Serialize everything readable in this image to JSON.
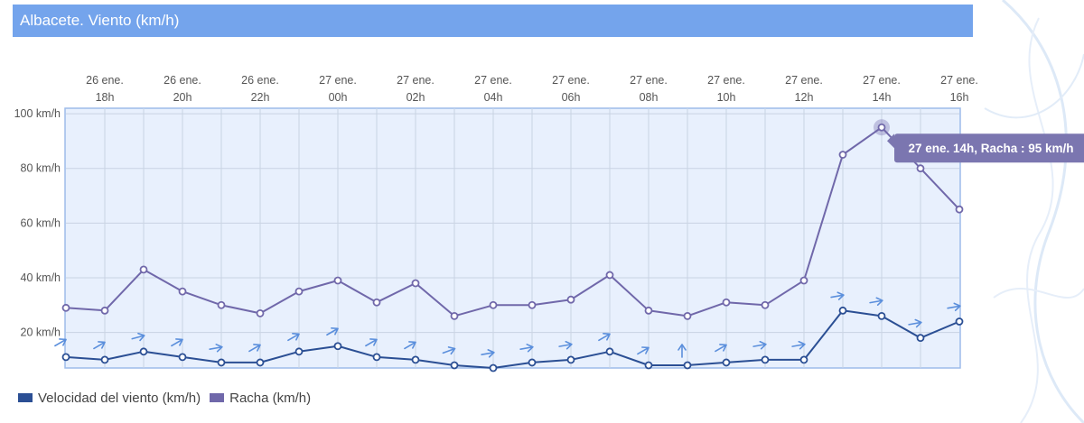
{
  "page": {
    "title": "Albacete. Viento (km/h)"
  },
  "colors": {
    "title_bg": "#74a4ec",
    "plot_bg": "#e8f0fd",
    "plot_border": "#9dbcea",
    "grid": "#c9d3e3",
    "wind": "#2b4f94",
    "gust": "#7068aa",
    "arrow": "#5b8fdc",
    "tooltip_bg": "#7b76b0"
  },
  "chart_data": {
    "type": "line",
    "title": "Albacete. Viento (km/h)",
    "x_labels": [
      {
        "day": "26 ene.",
        "hour": "18h"
      },
      {
        "day": "26 ene.",
        "hour": "20h"
      },
      {
        "day": "26 ene.",
        "hour": "22h"
      },
      {
        "day": "27 ene.",
        "hour": "00h"
      },
      {
        "day": "27 ene.",
        "hour": "02h"
      },
      {
        "day": "27 ene.",
        "hour": "04h"
      },
      {
        "day": "27 ene.",
        "hour": "06h"
      },
      {
        "day": "27 ene.",
        "hour": "08h"
      },
      {
        "day": "27 ene.",
        "hour": "10h"
      },
      {
        "day": "27 ene.",
        "hour": "12h"
      },
      {
        "day": "27 ene.",
        "hour": "14h"
      },
      {
        "day": "27 ene.",
        "hour": "16h"
      }
    ],
    "x": [
      "26 ene. 17h",
      "26 ene. 18h",
      "26 ene. 19h",
      "26 ene. 20h",
      "26 ene. 21h",
      "26 ene. 22h",
      "26 ene. 23h",
      "27 ene. 00h",
      "27 ene. 01h",
      "27 ene. 02h",
      "27 ene. 03h",
      "27 ene. 04h",
      "27 ene. 05h",
      "27 ene. 06h",
      "27 ene. 07h",
      "27 ene. 08h",
      "27 ene. 09h",
      "27 ene. 10h",
      "27 ene. 11h",
      "27 ene. 12h",
      "27 ene. 13h",
      "27 ene. 14h",
      "27 ene. 15h",
      "27 ene. 16h"
    ],
    "y_ticks": [
      "20 km/h",
      "40 km/h",
      "60 km/h",
      "80 km/h",
      "100 km/h"
    ],
    "ylim": [
      7,
      102
    ],
    "series": [
      {
        "name": "Velocidad del viento (km/h)",
        "values": [
          11,
          10,
          13,
          11,
          9,
          9,
          13,
          15,
          11,
          10,
          8,
          7,
          9,
          10,
          13,
          8,
          8,
          9,
          10,
          10,
          28,
          26,
          18,
          24
        ],
        "arrow_direction_deg": [
          60,
          60,
          75,
          60,
          80,
          60,
          60,
          60,
          60,
          60,
          70,
          80,
          80,
          80,
          60,
          60,
          0,
          60,
          80,
          80,
          80,
          80,
          80,
          80
        ]
      },
      {
        "name": "Racha (km/h)",
        "values": [
          29,
          28,
          43,
          35,
          30,
          27,
          35,
          39,
          31,
          38,
          26,
          30,
          30,
          32,
          41,
          28,
          26,
          31,
          30,
          39,
          85,
          95,
          80,
          65
        ]
      }
    ],
    "grid": true,
    "legend_position": "bottom-left",
    "tooltip": {
      "point_index": 21,
      "series_index": 1,
      "text": "27 ene. 14h, Racha : 95 km/h"
    }
  },
  "legend": {
    "items": [
      {
        "label": "Velocidad del viento (km/h)",
        "color": "#2b4f94"
      },
      {
        "label": "Racha (km/h)",
        "color": "#7068aa"
      }
    ]
  }
}
